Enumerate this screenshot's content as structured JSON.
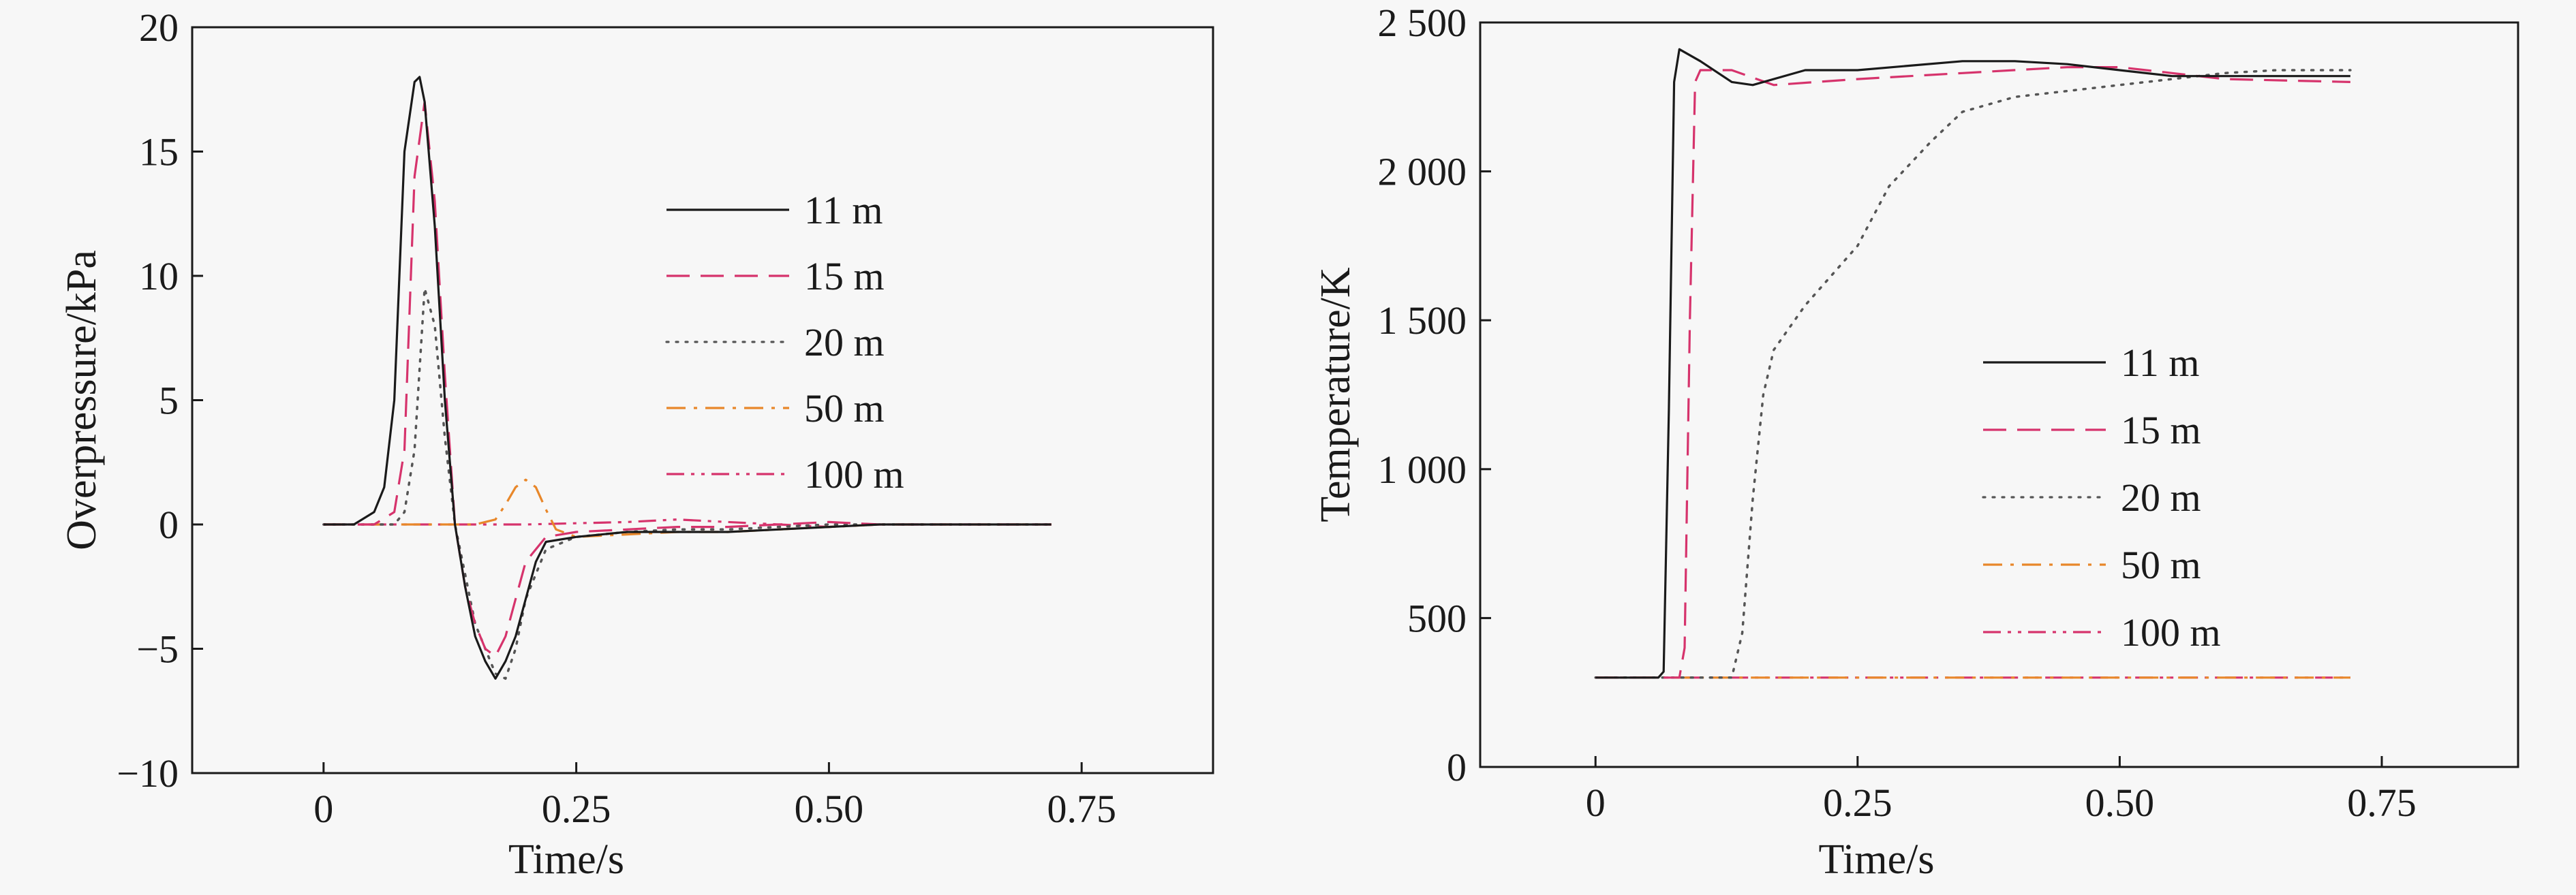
{
  "chart_data": [
    {
      "type": "line",
      "xlabel": "Time/s",
      "ylabel": "Overpressure/kPa",
      "xlim": [
        -0.13,
        0.88
      ],
      "ylim": [
        -10,
        20
      ],
      "xticks": [
        0,
        0.25,
        0.5,
        0.75
      ],
      "xtick_labels": [
        "0",
        "0.25",
        "0.50",
        "0.75"
      ],
      "yticks": [
        -10,
        -5,
        0,
        5,
        10,
        15,
        20
      ],
      "ytick_labels": [
        "−10",
        "−5",
        "0",
        "5",
        "10",
        "15",
        "20"
      ],
      "grid": false,
      "legend_position": "center-right",
      "series": [
        {
          "name": "11 m",
          "color": "#1a1a1a",
          "dash": "solid",
          "x": [
            0,
            0.03,
            0.05,
            0.06,
            0.07,
            0.08,
            0.09,
            0.095,
            0.1,
            0.11,
            0.12,
            0.13,
            0.14,
            0.15,
            0.16,
            0.17,
            0.18,
            0.19,
            0.2,
            0.21,
            0.22,
            0.25,
            0.3,
            0.35,
            0.4,
            0.45,
            0.5,
            0.55,
            0.6,
            0.65,
            0.72
          ],
          "y": [
            0,
            0,
            0.5,
            1.5,
            5,
            15,
            17.8,
            18,
            17,
            12,
            5,
            0,
            -2.5,
            -4.5,
            -5.5,
            -6.2,
            -5.5,
            -4.5,
            -3,
            -1.5,
            -0.7,
            -0.5,
            -0.3,
            -0.3,
            -0.3,
            -0.2,
            -0.1,
            0,
            0,
            0,
            0
          ]
        },
        {
          "name": "15 m",
          "color": "#d6336c",
          "dash": "long-dash",
          "x": [
            0,
            0.05,
            0.07,
            0.08,
            0.09,
            0.1,
            0.11,
            0.12,
            0.13,
            0.14,
            0.15,
            0.16,
            0.17,
            0.18,
            0.19,
            0.2,
            0.22,
            0.25,
            0.3,
            0.35,
            0.4,
            0.45,
            0.5,
            0.55,
            0.6,
            0.65,
            0.72
          ],
          "y": [
            0,
            0,
            0.5,
            3,
            14,
            17,
            13,
            6,
            0,
            -2.5,
            -4,
            -5,
            -5.3,
            -4.5,
            -3,
            -1.5,
            -0.5,
            -0.3,
            -0.2,
            -0.1,
            -0.1,
            0,
            0.1,
            0,
            0,
            0,
            0
          ]
        },
        {
          "name": "20 m",
          "color": "#555555",
          "dash": "dotted",
          "x": [
            0,
            0.07,
            0.08,
            0.09,
            0.1,
            0.11,
            0.12,
            0.13,
            0.14,
            0.15,
            0.16,
            0.17,
            0.18,
            0.19,
            0.2,
            0.22,
            0.25,
            0.3,
            0.35,
            0.4,
            0.45,
            0.5,
            0.55,
            0.6,
            0.65,
            0.72
          ],
          "y": [
            0,
            0,
            0.5,
            3,
            9.5,
            8,
            3.5,
            0,
            -2,
            -4,
            -5,
            -6,
            -6.2,
            -5,
            -3,
            -1,
            -0.5,
            -0.3,
            -0.2,
            -0.2,
            -0.1,
            0,
            0,
            0,
            0,
            0
          ]
        },
        {
          "name": "50 m",
          "color": "#e8872a",
          "dash": "dash-dot",
          "x": [
            0,
            0.15,
            0.17,
            0.18,
            0.19,
            0.2,
            0.21,
            0.22,
            0.23,
            0.25,
            0.3,
            0.35,
            0.4,
            0.45,
            0.5,
            0.55,
            0.6,
            0.65,
            0.72
          ],
          "y": [
            0,
            0,
            0.2,
            0.8,
            1.5,
            1.8,
            1.5,
            0.6,
            -0.2,
            -0.5,
            -0.4,
            -0.3,
            -0.3,
            -0.2,
            -0.1,
            0,
            0,
            0,
            0
          ]
        },
        {
          "name": "100 m",
          "color": "#d6336c",
          "dash": "dash-dot-dot",
          "x": [
            0,
            0.1,
            0.2,
            0.3,
            0.35,
            0.4,
            0.45,
            0.5,
            0.55,
            0.6,
            0.65,
            0.72
          ],
          "y": [
            0,
            0,
            0,
            0.1,
            0.2,
            0.1,
            0,
            -0.1,
            0,
            0,
            0,
            0
          ]
        }
      ]
    },
    {
      "type": "line",
      "xlabel": "Time/s",
      "ylabel": "Temperature/K",
      "xlim": [
        -0.11,
        0.88
      ],
      "ylim": [
        0,
        2500
      ],
      "xticks": [
        0,
        0.25,
        0.5,
        0.75
      ],
      "xtick_labels": [
        "0",
        "0.25",
        "0.50",
        "0.75"
      ],
      "yticks": [
        0,
        500,
        1000,
        1500,
        2000,
        2500
      ],
      "ytick_labels": [
        "0",
        "500",
        "1 000",
        "1 500",
        "2 000",
        "2 500"
      ],
      "grid": false,
      "legend_position": "center-right",
      "series": [
        {
          "name": "11 m",
          "color": "#1a1a1a",
          "dash": "solid",
          "x": [
            0,
            0.06,
            0.065,
            0.07,
            0.075,
            0.08,
            0.1,
            0.13,
            0.15,
            0.2,
            0.25,
            0.3,
            0.35,
            0.4,
            0.45,
            0.5,
            0.55,
            0.6,
            0.72
          ],
          "y": [
            300,
            300,
            320,
            1200,
            2300,
            2410,
            2370,
            2300,
            2290,
            2340,
            2340,
            2355,
            2370,
            2370,
            2360,
            2340,
            2320,
            2320,
            2320
          ]
        },
        {
          "name": "15 m",
          "color": "#d6336c",
          "dash": "long-dash",
          "x": [
            0,
            0.08,
            0.085,
            0.09,
            0.095,
            0.1,
            0.13,
            0.17,
            0.25,
            0.35,
            0.45,
            0.5,
            0.55,
            0.6,
            0.72
          ],
          "y": [
            300,
            300,
            400,
            1500,
            2300,
            2340,
            2340,
            2290,
            2310,
            2330,
            2350,
            2350,
            2330,
            2310,
            2300
          ]
        },
        {
          "name": "20 m",
          "color": "#555555",
          "dash": "dotted",
          "x": [
            0,
            0.13,
            0.14,
            0.15,
            0.16,
            0.17,
            0.2,
            0.25,
            0.28,
            0.32,
            0.35,
            0.4,
            0.45,
            0.5,
            0.55,
            0.6,
            0.65,
            0.72
          ],
          "y": [
            300,
            300,
            450,
            900,
            1250,
            1400,
            1550,
            1750,
            1950,
            2100,
            2200,
            2250,
            2270,
            2290,
            2310,
            2330,
            2340,
            2340
          ]
        },
        {
          "name": "50 m",
          "color": "#e8872a",
          "dash": "dash-dot",
          "x": [
            0,
            0.72
          ],
          "y": [
            300,
            300
          ]
        },
        {
          "name": "100 m",
          "color": "#d6336c",
          "dash": "dash-dot-dot",
          "x": [
            0,
            0.72
          ],
          "y": [
            300,
            300
          ]
        }
      ]
    }
  ]
}
